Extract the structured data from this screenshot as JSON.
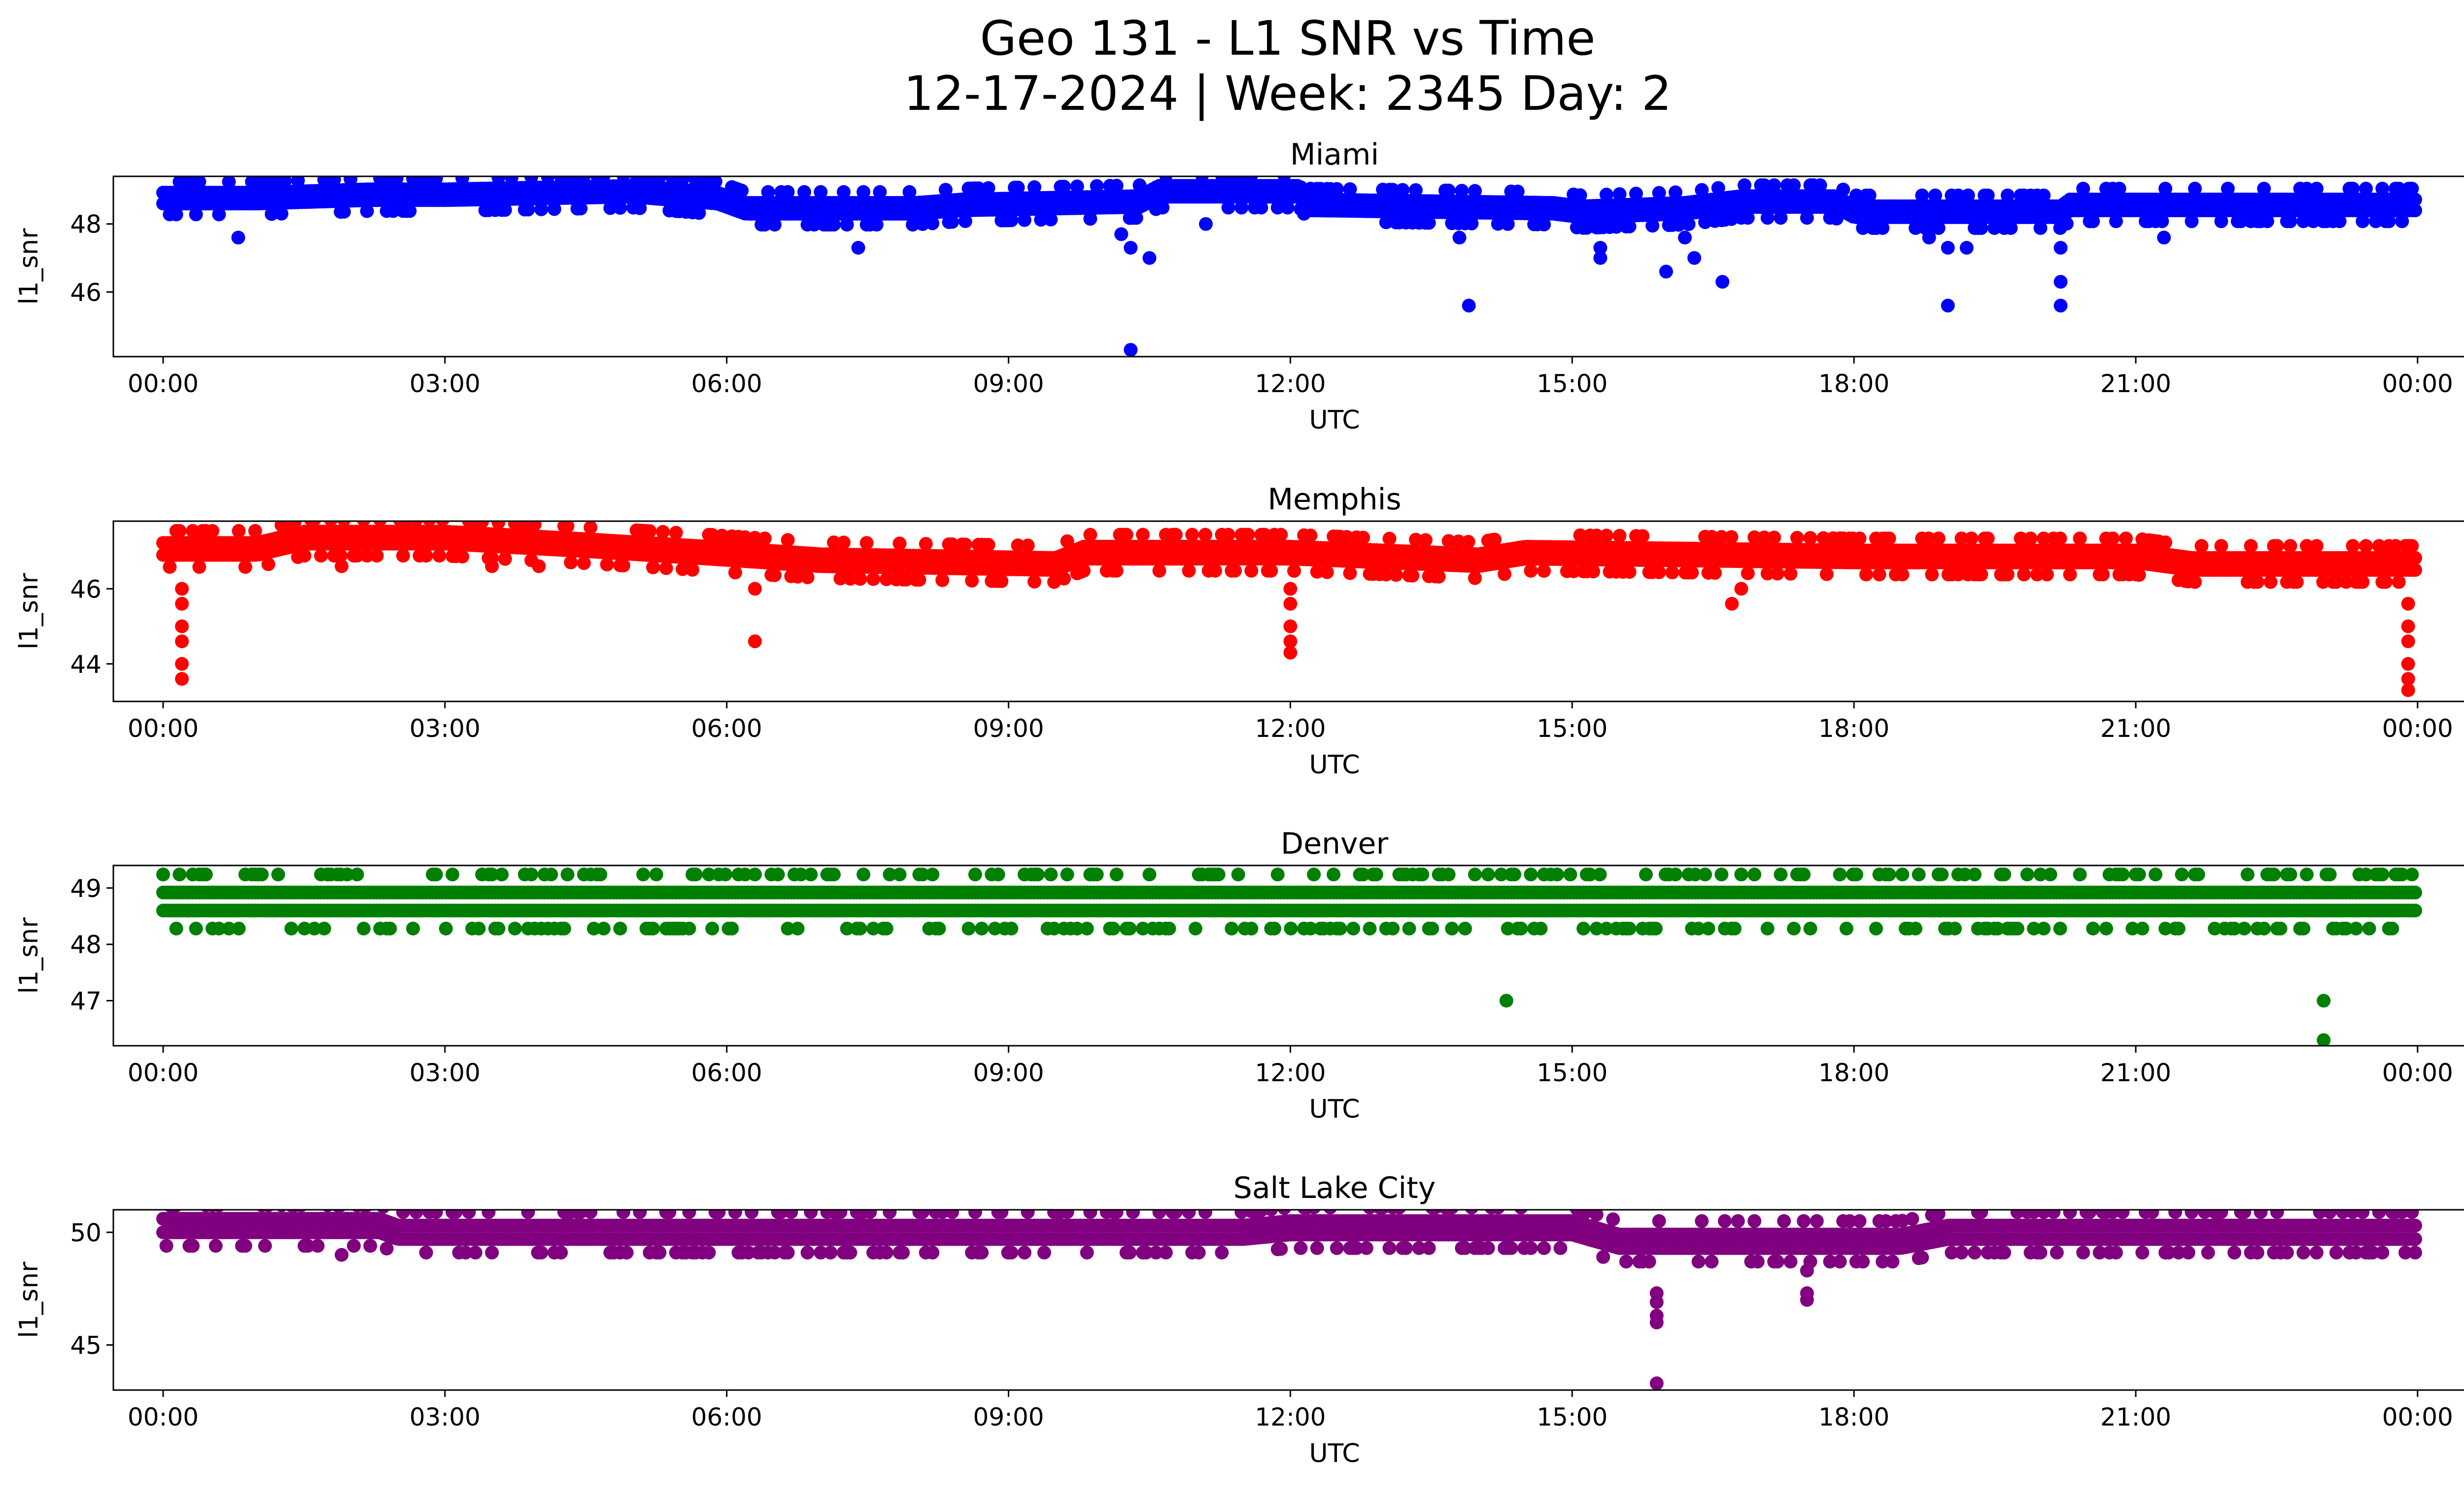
{
  "figure": {
    "title_line1": "Geo 131 - L1 SNR vs Time",
    "title_line2": "12-17-2024 | Week: 2345 Day: 2"
  },
  "chart_data": [
    {
      "type": "scatter",
      "title": "Miami",
      "xlabel": "UTC",
      "ylabel": "l1_snr",
      "color": "#0000ff",
      "xlim": [
        -0.53,
        25.47
      ],
      "ylim": [
        44.1,
        49.4
      ],
      "xticks": [
        0,
        3,
        6,
        9,
        12,
        15,
        18,
        21,
        24
      ],
      "xtick_labels": [
        "00:00",
        "03:00",
        "06:00",
        "09:00",
        "12:00",
        "15:00",
        "18:00",
        "21:00",
        "00:00"
      ],
      "yticks": [
        46,
        48
      ],
      "ytick_labels": [
        "46",
        "48"
      ],
      "baseline": [
        [
          0.0,
          48.6
        ],
        [
          1.0,
          48.6
        ],
        [
          2.2,
          48.7
        ],
        [
          3.0,
          48.7
        ],
        [
          5.0,
          48.8
        ],
        [
          5.9,
          48.6
        ],
        [
          6.2,
          48.3
        ],
        [
          8.0,
          48.3
        ],
        [
          8.5,
          48.4
        ],
        [
          10.4,
          48.5
        ],
        [
          10.6,
          48.8
        ],
        [
          12.1,
          48.8
        ],
        [
          12.2,
          48.4
        ],
        [
          14.8,
          48.3
        ],
        [
          15.1,
          48.2
        ],
        [
          16.2,
          48.3
        ],
        [
          16.8,
          48.5
        ],
        [
          17.8,
          48.5
        ],
        [
          18.0,
          48.2
        ],
        [
          20.2,
          48.2
        ],
        [
          20.3,
          48.4
        ],
        [
          24.0,
          48.4
        ]
      ],
      "outliers": [
        [
          0.8,
          47.6
        ],
        [
          7.4,
          47.3
        ],
        [
          10.2,
          47.7
        ],
        [
          10.3,
          44.3
        ],
        [
          10.3,
          47.3
        ],
        [
          10.5,
          47.0
        ],
        [
          11.1,
          48.0
        ],
        [
          13.8,
          47.6
        ],
        [
          13.9,
          45.6
        ],
        [
          15.3,
          47.0
        ],
        [
          15.3,
          47.3
        ],
        [
          16.0,
          46.6
        ],
        [
          16.2,
          47.6
        ],
        [
          16.3,
          47.0
        ],
        [
          16.6,
          46.3
        ],
        [
          18.8,
          47.6
        ],
        [
          19.0,
          47.3
        ],
        [
          19.0,
          45.6
        ],
        [
          19.2,
          47.3
        ],
        [
          20.2,
          47.3
        ],
        [
          20.2,
          46.3
        ],
        [
          20.2,
          45.6
        ],
        [
          21.3,
          47.6
        ]
      ]
    },
    {
      "type": "scatter",
      "title": "Memphis",
      "xlabel": "UTC",
      "ylabel": "l1_snr",
      "color": "#ff0000",
      "xlim": [
        -0.53,
        25.47
      ],
      "ylim": [
        43.0,
        47.8
      ],
      "xticks": [
        0,
        3,
        6,
        9,
        12,
        15,
        18,
        21,
        24
      ],
      "xtick_labels": [
        "00:00",
        "03:00",
        "06:00",
        "09:00",
        "12:00",
        "15:00",
        "18:00",
        "21:00",
        "00:00"
      ],
      "yticks": [
        44,
        46
      ],
      "ytick_labels": [
        "44",
        "46"
      ],
      "baseline": [
        [
          0.0,
          46.9
        ],
        [
          1.0,
          46.9
        ],
        [
          1.5,
          47.2
        ],
        [
          3.0,
          47.2
        ],
        [
          4.5,
          47.0
        ],
        [
          5.8,
          46.8
        ],
        [
          7.0,
          46.6
        ],
        [
          9.5,
          46.5
        ],
        [
          9.8,
          46.8
        ],
        [
          12.0,
          46.8
        ],
        [
          14.0,
          46.6
        ],
        [
          14.5,
          46.8
        ],
        [
          18.0,
          46.7
        ],
        [
          21.0,
          46.7
        ],
        [
          21.6,
          46.5
        ],
        [
          24.0,
          46.5
        ]
      ],
      "outliers": [
        [
          0.2,
          43.6
        ],
        [
          0.2,
          44.0
        ],
        [
          0.2,
          44.6
        ],
        [
          0.2,
          45.0
        ],
        [
          0.2,
          45.6
        ],
        [
          0.2,
          46.0
        ],
        [
          1.9,
          46.6
        ],
        [
          3.5,
          46.6
        ],
        [
          4.0,
          46.6
        ],
        [
          6.3,
          44.6
        ],
        [
          6.3,
          46.0
        ],
        [
          12.0,
          44.3
        ],
        [
          12.0,
          44.6
        ],
        [
          12.0,
          45.0
        ],
        [
          12.0,
          45.6
        ],
        [
          12.0,
          46.0
        ],
        [
          16.7,
          45.6
        ],
        [
          16.8,
          46.0
        ],
        [
          23.9,
          43.3
        ],
        [
          23.9,
          43.6
        ],
        [
          23.9,
          44.0
        ],
        [
          23.9,
          44.6
        ],
        [
          23.9,
          45.0
        ],
        [
          23.9,
          45.6
        ]
      ]
    },
    {
      "type": "scatter",
      "title": "Denver",
      "xlabel": "UTC",
      "ylabel": "l1_snr",
      "color": "#008000",
      "xlim": [
        -0.53,
        25.47
      ],
      "ylim": [
        46.2,
        49.4
      ],
      "xticks": [
        0,
        3,
        6,
        9,
        12,
        15,
        18,
        21,
        24
      ],
      "xtick_labels": [
        "00:00",
        "03:00",
        "06:00",
        "09:00",
        "12:00",
        "15:00",
        "18:00",
        "21:00",
        "00:00"
      ],
      "yticks": [
        47,
        48,
        49
      ],
      "ytick_labels": [
        "47",
        "48",
        "49"
      ],
      "baseline": [
        [
          0.0,
          48.6
        ],
        [
          24.0,
          48.6
        ]
      ],
      "outliers": [
        [
          14.3,
          47.0
        ],
        [
          23.0,
          47.0
        ],
        [
          23.0,
          46.3
        ]
      ]
    },
    {
      "type": "scatter",
      "title": "Salt Lake City",
      "xlabel": "UTC",
      "ylabel": "l1_snr",
      "color": "#800080",
      "xlim": [
        -0.53,
        25.47
      ],
      "ylim": [
        43.0,
        51.0
      ],
      "xticks": [
        0,
        3,
        6,
        9,
        12,
        15,
        18,
        21,
        24
      ],
      "xtick_labels": [
        "00:00",
        "03:00",
        "06:00",
        "09:00",
        "12:00",
        "15:00",
        "18:00",
        "21:00",
        "00:00"
      ],
      "yticks": [
        45,
        50
      ],
      "ytick_labels": [
        "45",
        "50"
      ],
      "baseline": [
        [
          0.0,
          50.0
        ],
        [
          2.3,
          50.0
        ],
        [
          2.5,
          49.7
        ],
        [
          11.5,
          49.7
        ],
        [
          12.0,
          49.9
        ],
        [
          15.0,
          49.9
        ],
        [
          15.5,
          49.3
        ],
        [
          18.5,
          49.3
        ],
        [
          19.0,
          49.7
        ],
        [
          24.0,
          49.7
        ]
      ],
      "outliers": [
        [
          1.9,
          49.0
        ],
        [
          15.9,
          47.3
        ],
        [
          15.9,
          46.9
        ],
        [
          15.9,
          46.3
        ],
        [
          15.9,
          46.0
        ],
        [
          15.9,
          43.3
        ],
        [
          17.5,
          48.3
        ],
        [
          17.5,
          47.3
        ],
        [
          17.5,
          47.0
        ]
      ]
    }
  ]
}
